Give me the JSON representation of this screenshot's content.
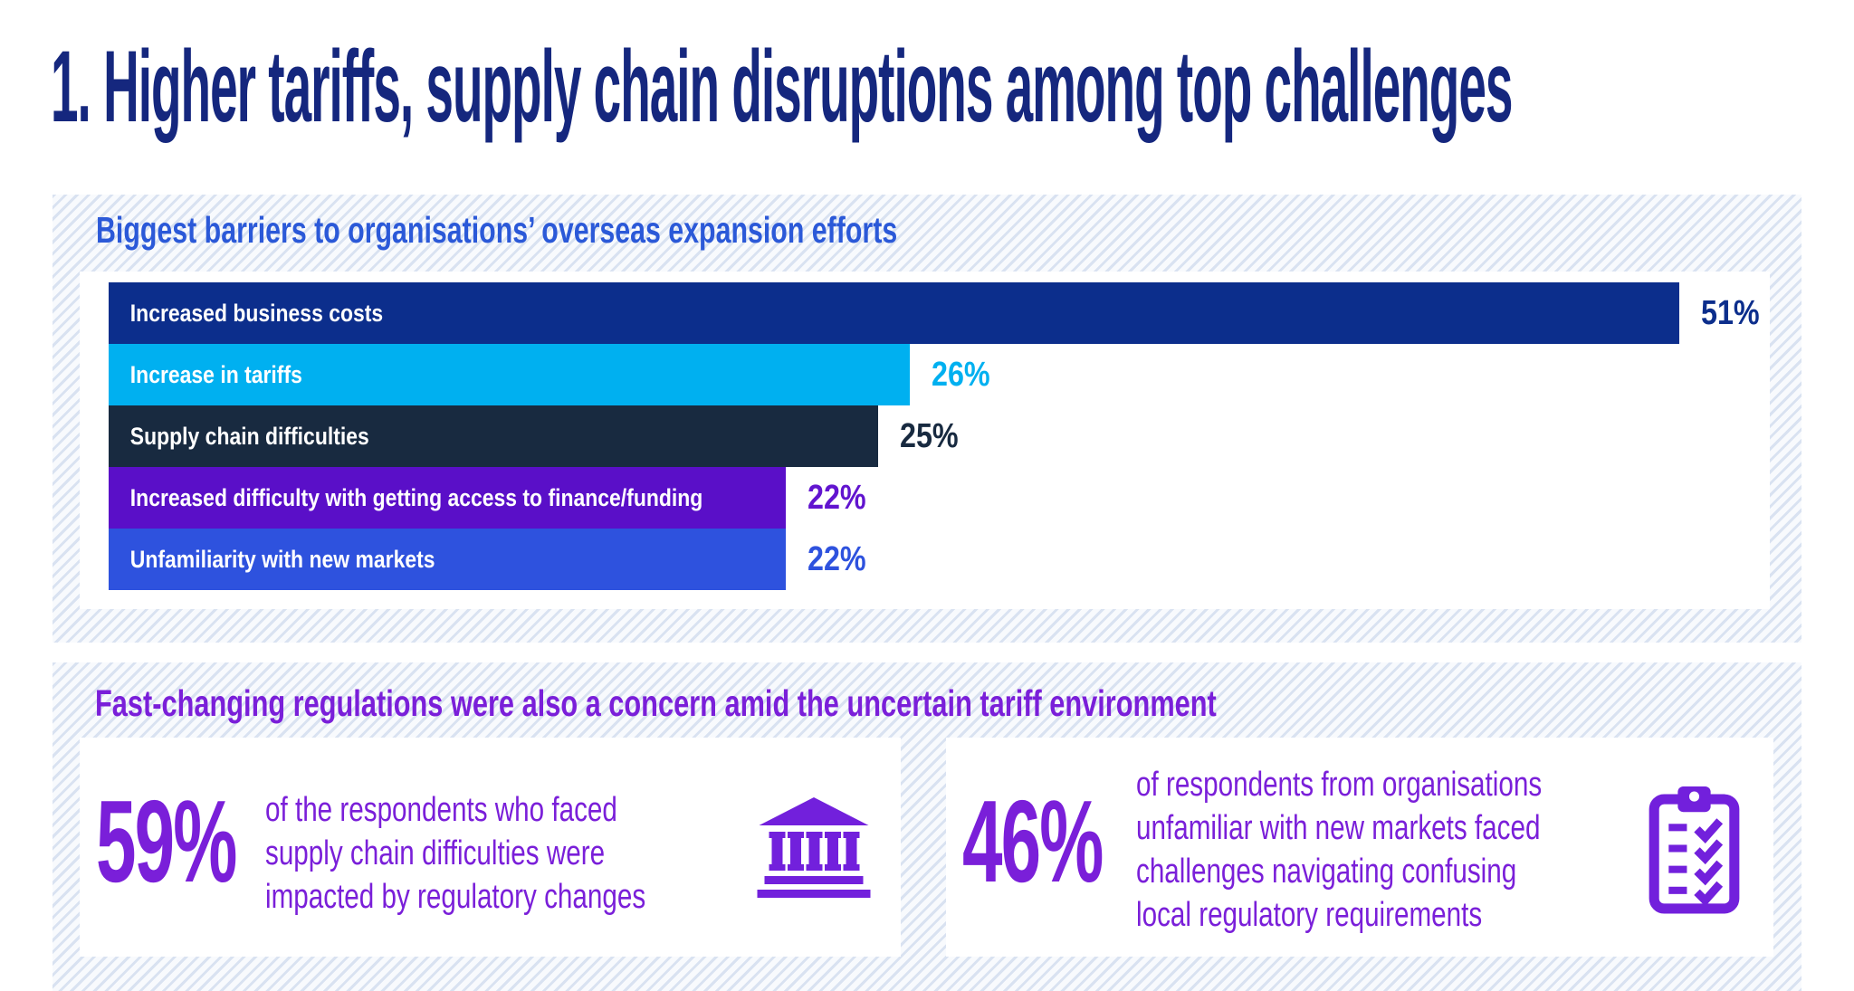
{
  "page": {
    "title": "1. Higher tariffs, supply chain disruptions among top challenges"
  },
  "colors": {
    "title-navy": "#15277E",
    "chart-title-blue": "#2B59D8",
    "accent-purple": "#7A1FD9",
    "icon-purple": "#7220DC",
    "hatch-line": "#D9E2F1",
    "hatch-bg": "#F8FAFD"
  },
  "barriers_section": {
    "title": "Biggest barriers to organisations’ overseas expansion efforts"
  },
  "chart_data": {
    "type": "bar",
    "orientation": "horizontal",
    "title": "Biggest barriers to organisations’ overseas expansion efforts",
    "categories": [
      "Increased business costs",
      "Increase in tariffs",
      "Supply chain difficulties",
      "Increased difficulty with getting access to finance/funding",
      "Unfamiliarity with new markets"
    ],
    "values": [
      51,
      26,
      25,
      22,
      22
    ],
    "value_labels": [
      "51%",
      "26%",
      "25%",
      "22%",
      "22%"
    ],
    "bar_colors": [
      "#0C2E8C",
      "#00B0F0",
      "#182A40",
      "#5A0FC8",
      "#2E52DE"
    ],
    "value_label_colors": [
      "#0C2E8C",
      "#00B0F0",
      "#182A40",
      "#6114CF",
      "#2E52DE"
    ],
    "xlim": [
      0,
      51
    ],
    "grid": false,
    "axis_labels": "none",
    "legend": "none"
  },
  "regulations_section": {
    "title": "Fast-changing regulations were also a concern amid the uncertain tariff environment",
    "stats": [
      {
        "value": "59%",
        "lines": [
          "of the respondents who faced",
          "supply chain difficulties were",
          "impacted by regulatory changes"
        ],
        "icon": "bank-building-icon"
      },
      {
        "value": "46%",
        "lines": [
          "of respondents from organisations",
          "unfamiliar with new markets faced",
          "challenges navigating confusing",
          "local regulatory requirements"
        ],
        "icon": "clipboard-checklist-icon"
      }
    ]
  }
}
